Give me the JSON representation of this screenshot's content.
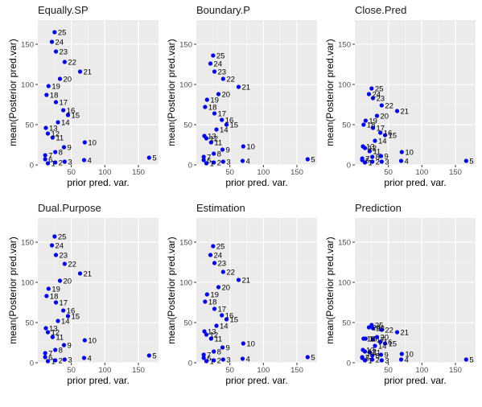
{
  "colors": {
    "panel_bg": "#ebebeb",
    "grid_major": "#ffffff",
    "grid_minor": "#f4f4f4",
    "point": "#0000ff",
    "tick_text": "#4d4d4d",
    "text": "#000000"
  },
  "chart_data": [
    {
      "type": "scatter",
      "title": "Equally.SP",
      "xlabel": "prior pred. var.",
      "ylabel": "mean(Posterior pred.var)",
      "xlim": [
        0,
        180
      ],
      "ylim": [
        0,
        180
      ],
      "xticks": [
        50,
        100,
        150
      ],
      "yticks": [
        0,
        50,
        100,
        150
      ],
      "grid": true,
      "labels": [
        "1",
        "2",
        "3",
        "4",
        "5",
        "6",
        "7",
        "8",
        "9",
        "10",
        "11",
        "12",
        "13",
        "14",
        "15",
        "16",
        "17",
        "18",
        "19",
        "20",
        "21",
        "22",
        "23",
        "24",
        "25"
      ],
      "x": [
        15,
        26,
        40,
        69,
        166,
        11,
        11,
        26,
        39,
        70,
        22,
        15,
        12,
        30,
        45,
        38,
        27,
        13,
        16,
        33,
        63,
        40,
        27,
        21,
        25
      ],
      "y": [
        2,
        3,
        4,
        6,
        9,
        7,
        12,
        16,
        22,
        28,
        34,
        39,
        46,
        53,
        62,
        68,
        78,
        87,
        98,
        107,
        116,
        128,
        141,
        153,
        165
      ]
    },
    {
      "type": "scatter",
      "title": "Boundary.P",
      "xlabel": "prior pred. var.",
      "ylabel": "mean(Posterior pred.var)",
      "xlim": [
        0,
        180
      ],
      "ylim": [
        0,
        180
      ],
      "xticks": [
        50,
        100,
        150
      ],
      "yticks": [
        0,
        50,
        100,
        150
      ],
      "grid": true,
      "labels": [
        "1",
        "2",
        "3",
        "4",
        "5",
        "6",
        "7",
        "8",
        "9",
        "10",
        "11",
        "12",
        "13",
        "14",
        "15",
        "16",
        "17",
        "18",
        "19",
        "20",
        "21",
        "22",
        "23",
        "24",
        "25"
      ],
      "x": [
        15,
        26,
        40,
        69,
        166,
        11,
        11,
        26,
        39,
        70,
        22,
        15,
        12,
        30,
        45,
        38,
        27,
        13,
        16,
        33,
        63,
        40,
        27,
        21,
        25
      ],
      "y": [
        2,
        3,
        4,
        5,
        7,
        6,
        10,
        14,
        19,
        23,
        28,
        33,
        36,
        44,
        50,
        56,
        64,
        72,
        81,
        88,
        97,
        107,
        116,
        126,
        136
      ]
    },
    {
      "type": "scatter",
      "title": "Close.Pred",
      "xlabel": "prior pred. var.",
      "ylabel": "mean(Posterior pred.var)",
      "xlim": [
        0,
        180
      ],
      "ylim": [
        0,
        180
      ],
      "xticks": [
        50,
        100,
        150
      ],
      "yticks": [
        0,
        50,
        100,
        150
      ],
      "grid": true,
      "labels": [
        "1",
        "2",
        "3",
        "4",
        "5",
        "6",
        "7",
        "8",
        "9",
        "10",
        "11",
        "12",
        "13",
        "14",
        "15",
        "16",
        "17",
        "18",
        "19",
        "20",
        "21",
        "22",
        "23",
        "24",
        "25"
      ],
      "x": [
        15,
        26,
        40,
        69,
        166,
        11,
        11,
        26,
        39,
        70,
        22,
        15,
        12,
        30,
        45,
        38,
        27,
        13,
        16,
        33,
        63,
        40,
        27,
        21,
        25
      ],
      "y": [
        3,
        4,
        4,
        5,
        5,
        6,
        8,
        10,
        11,
        16,
        17,
        21,
        23,
        30,
        37,
        40,
        46,
        50,
        55,
        61,
        67,
        74,
        83,
        88,
        95
      ]
    },
    {
      "type": "scatter",
      "title": "Dual.Purpose",
      "xlabel": "prior pred. var.",
      "ylabel": "mean(Posterior pred.var)",
      "xlim": [
        0,
        180
      ],
      "ylim": [
        0,
        180
      ],
      "xticks": [
        50,
        100,
        150
      ],
      "yticks": [
        0,
        50,
        100,
        150
      ],
      "grid": true,
      "labels": [
        "1",
        "2",
        "3",
        "4",
        "5",
        "6",
        "7",
        "8",
        "9",
        "10",
        "11",
        "12",
        "13",
        "14",
        "15",
        "16",
        "17",
        "18",
        "19",
        "20",
        "21",
        "22",
        "23",
        "24",
        "25"
      ],
      "x": [
        15,
        26,
        40,
        69,
        166,
        11,
        11,
        26,
        39,
        70,
        22,
        15,
        12,
        30,
        45,
        38,
        27,
        13,
        16,
        33,
        63,
        40,
        27,
        21,
        25
      ],
      "y": [
        2,
        3,
        4,
        6,
        9,
        7,
        12,
        16,
        22,
        28,
        32,
        38,
        43,
        52,
        58,
        65,
        75,
        83,
        92,
        102,
        111,
        123,
        134,
        146,
        157
      ]
    },
    {
      "type": "scatter",
      "title": "Estimation",
      "xlabel": "prior pred. var.",
      "ylabel": "mean(Posterior pred.var)",
      "xlim": [
        0,
        180
      ],
      "ylim": [
        0,
        180
      ],
      "xticks": [
        50,
        100,
        150
      ],
      "yticks": [
        0,
        50,
        100,
        150
      ],
      "grid": true,
      "labels": [
        "1",
        "2",
        "3",
        "4",
        "5",
        "6",
        "7",
        "8",
        "9",
        "10",
        "11",
        "12",
        "13",
        "14",
        "15",
        "16",
        "17",
        "18",
        "19",
        "20",
        "21",
        "22",
        "23",
        "24",
        "25"
      ],
      "x": [
        15,
        26,
        40,
        69,
        166,
        11,
        11,
        26,
        39,
        70,
        22,
        15,
        12,
        30,
        45,
        38,
        27,
        13,
        16,
        33,
        63,
        40,
        27,
        21,
        25
      ],
      "y": [
        2,
        3,
        4,
        5,
        7,
        6,
        10,
        14,
        19,
        24,
        30,
        35,
        39,
        46,
        54,
        59,
        67,
        76,
        85,
        94,
        103,
        113,
        124,
        134,
        145
      ]
    },
    {
      "type": "scatter",
      "title": "Prediction",
      "xlabel": "prior pred. var.",
      "ylabel": "mean(Posterior pred.var)",
      "xlim": [
        0,
        180
      ],
      "ylim": [
        0,
        180
      ],
      "xticks": [
        50,
        100,
        150
      ],
      "yticks": [
        0,
        50,
        100,
        150
      ],
      "grid": true,
      "labels": [
        "1",
        "2",
        "3",
        "4",
        "5",
        "6",
        "7",
        "8",
        "9",
        "10",
        "11",
        "12",
        "13",
        "14",
        "15",
        "16",
        "17",
        "18",
        "19",
        "20",
        "21",
        "22",
        "23",
        "24",
        "25"
      ],
      "x": [
        15,
        26,
        40,
        69,
        166,
        11,
        11,
        26,
        39,
        70,
        22,
        15,
        12,
        30,
        45,
        38,
        27,
        13,
        16,
        33,
        63,
        40,
        27,
        21,
        25
      ],
      "y": [
        3,
        4,
        3,
        4,
        4,
        6,
        7,
        9,
        10,
        11,
        13,
        14,
        16,
        21,
        24,
        26,
        29,
        30,
        30,
        32,
        38,
        41,
        43,
        44,
        47
      ]
    }
  ]
}
